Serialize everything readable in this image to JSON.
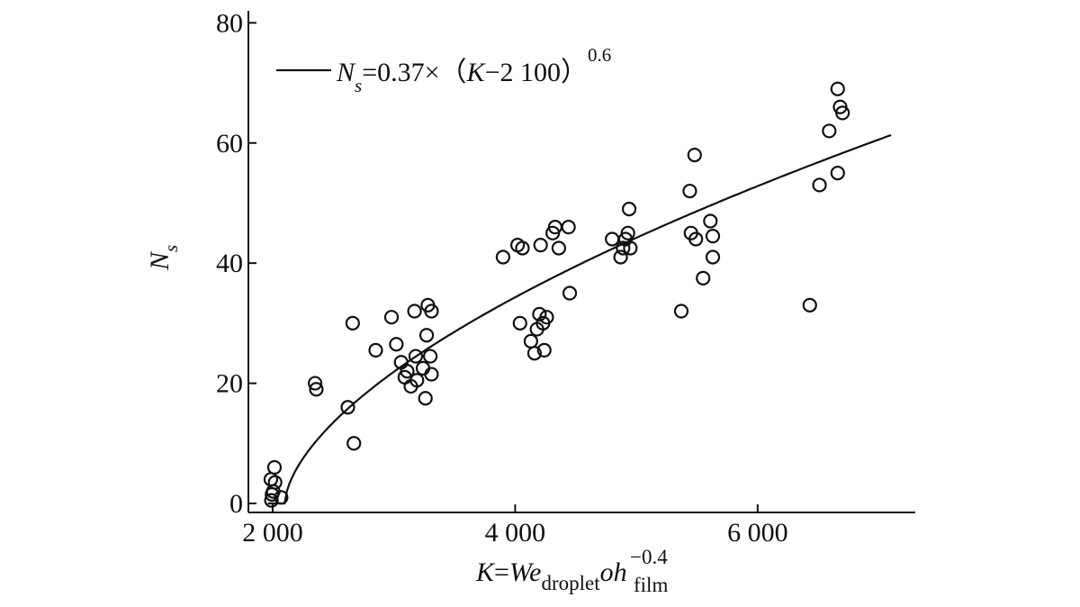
{
  "chart_data": {
    "type": "scatter",
    "xlabel": {
      "prefix": "K",
      "eq": "=",
      "we": "We",
      "we_sub": "droplet",
      "oh": "oh",
      "oh_sup": "−0.4",
      "oh_sub": "film"
    },
    "ylabel": {
      "main": "N",
      "sub": "s"
    },
    "xlim": [
      1800,
      7300
    ],
    "ylim": [
      -1.5,
      82
    ],
    "xticks": [
      2000,
      4000,
      6000
    ],
    "xtick_labels": [
      "2 000",
      "4 000",
      "6 000"
    ],
    "yticks": [
      0,
      20,
      40,
      60,
      80
    ],
    "ytick_labels": [
      "0",
      "20",
      "40",
      "60",
      "80"
    ],
    "legend": {
      "position": "top-left",
      "n": "N",
      "n_sub": "s",
      "eq_part": "=0.37×（",
      "k": "K",
      "rest": "−2 100）",
      "exponent": "0.6"
    },
    "fit": {
      "coef": 0.37,
      "offset": 2100,
      "exponent": 0.6,
      "x_start": 1960,
      "x_end": 7100
    },
    "series": [
      {
        "marker": "open-circle",
        "points": [
          [
            1985,
            4
          ],
          [
            2015,
            6
          ],
          [
            2020,
            3.5
          ],
          [
            2005,
            2
          ],
          [
            1995,
            1.5
          ],
          [
            1990,
            0.5
          ],
          [
            2070,
            1
          ],
          [
            2350,
            20
          ],
          [
            2360,
            19
          ],
          [
            2620,
            16
          ],
          [
            2660,
            30
          ],
          [
            2670,
            10
          ],
          [
            2850,
            25.5
          ],
          [
            2980,
            31
          ],
          [
            3020,
            26.5
          ],
          [
            3060,
            23.5
          ],
          [
            3090,
            21
          ],
          [
            3110,
            22
          ],
          [
            3140,
            19.5
          ],
          [
            3170,
            32
          ],
          [
            3180,
            24.5
          ],
          [
            3190,
            20.5
          ],
          [
            3240,
            22.5
          ],
          [
            3260,
            17.5
          ],
          [
            3270,
            28
          ],
          [
            3280,
            33
          ],
          [
            3300,
            24.5
          ],
          [
            3310,
            32
          ],
          [
            3310,
            21.5
          ],
          [
            3900,
            41
          ],
          [
            4020,
            43
          ],
          [
            4060,
            42.5
          ],
          [
            4040,
            30
          ],
          [
            4130,
            27
          ],
          [
            4160,
            25
          ],
          [
            4180,
            29
          ],
          [
            4200,
            31.5
          ],
          [
            4210,
            43
          ],
          [
            4230,
            30
          ],
          [
            4240,
            25.5
          ],
          [
            4260,
            31
          ],
          [
            4310,
            45
          ],
          [
            4330,
            46
          ],
          [
            4360,
            42.5
          ],
          [
            4440,
            46
          ],
          [
            4450,
            35
          ],
          [
            4800,
            44
          ],
          [
            4870,
            41
          ],
          [
            4890,
            42.5
          ],
          [
            4910,
            44
          ],
          [
            4930,
            45
          ],
          [
            4940,
            49
          ],
          [
            4950,
            42.5
          ],
          [
            5370,
            32
          ],
          [
            5440,
            52
          ],
          [
            5450,
            45
          ],
          [
            5480,
            58
          ],
          [
            5490,
            44
          ],
          [
            5550,
            37.5
          ],
          [
            5610,
            47
          ],
          [
            5630,
            44.5
          ],
          [
            5630,
            41
          ],
          [
            6430,
            33
          ],
          [
            6510,
            53
          ],
          [
            6590,
            62
          ],
          [
            6660,
            69
          ],
          [
            6660,
            55
          ],
          [
            6680,
            66
          ],
          [
            6700,
            65
          ]
        ]
      }
    ]
  }
}
